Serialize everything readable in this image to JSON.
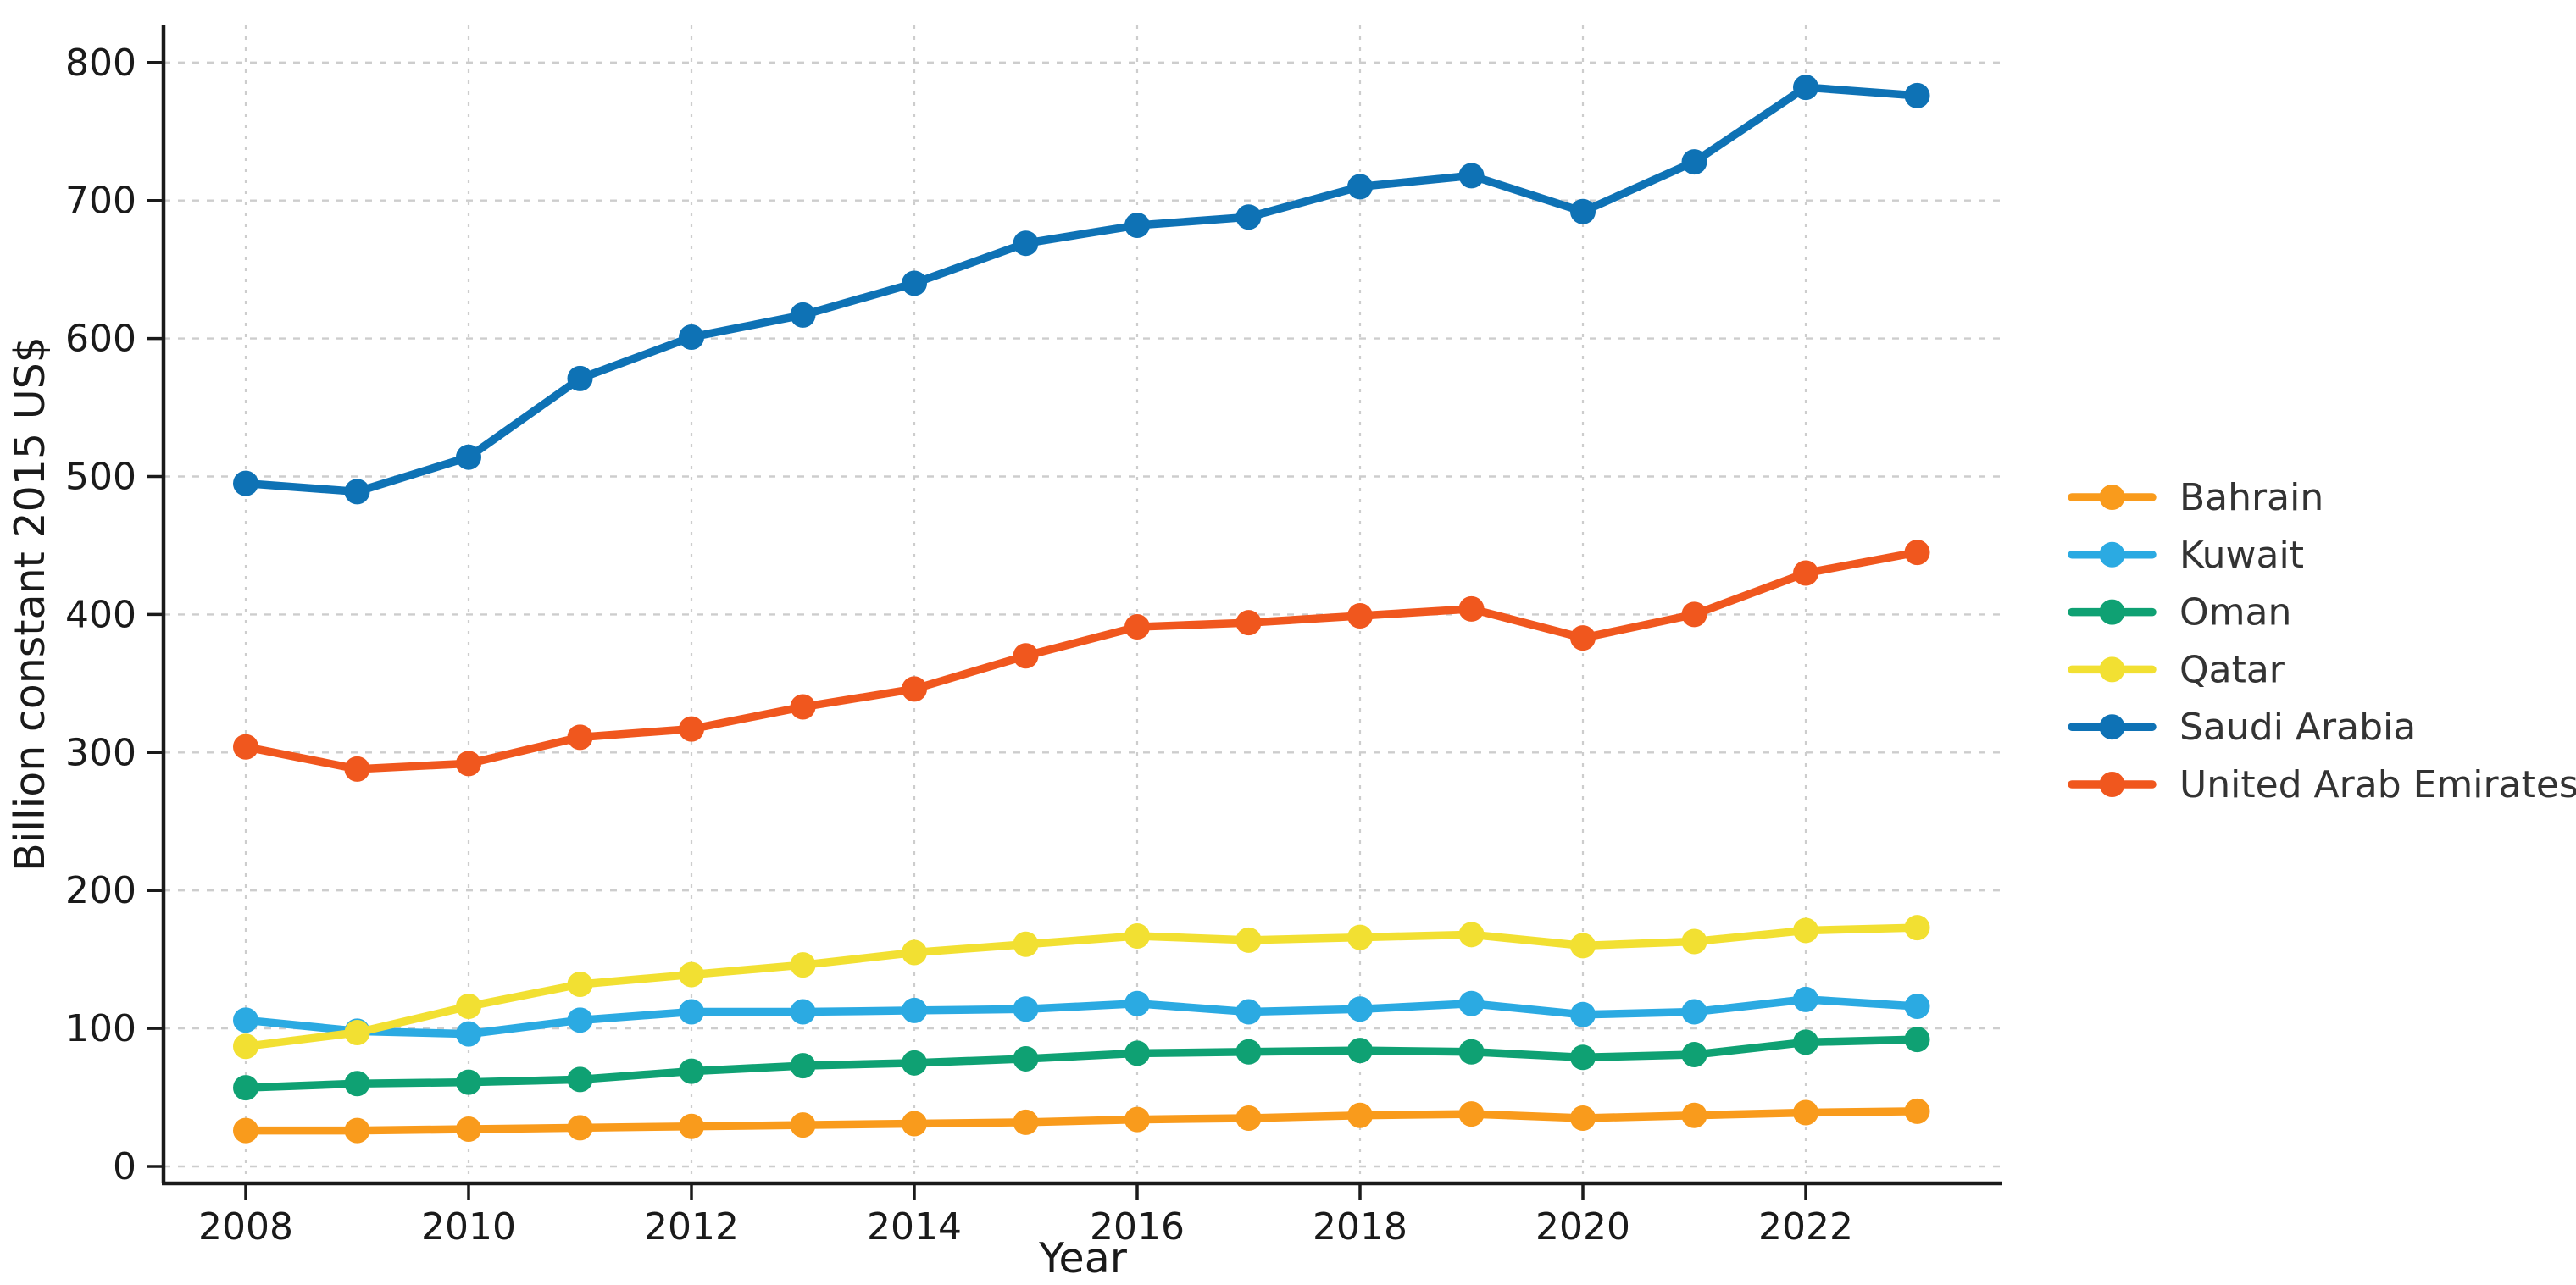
{
  "figure": {
    "xlabel": "Year",
    "ylabel": "Billion constant 2015 US$"
  },
  "chart_data": {
    "type": "line",
    "x": [
      2008,
      2009,
      2010,
      2011,
      2012,
      2013,
      2014,
      2015,
      2016,
      2017,
      2018,
      2019,
      2020,
      2021,
      2022,
      2023
    ],
    "series": [
      {
        "name": "Bahrain",
        "color": "#F99B1C",
        "values": [
          26,
          26,
          27,
          28,
          29,
          30,
          31,
          32,
          34,
          35,
          37,
          38,
          35,
          37,
          39,
          40
        ]
      },
      {
        "name": "Kuwait",
        "color": "#2BAAE2",
        "values": [
          106,
          98,
          96,
          106,
          112,
          112,
          113,
          114,
          118,
          112,
          114,
          118,
          110,
          112,
          121,
          116
        ]
      },
      {
        "name": "Oman",
        "color": "#0FA173",
        "values": [
          57,
          60,
          61,
          63,
          69,
          73,
          75,
          78,
          82,
          83,
          84,
          83,
          79,
          81,
          90,
          92
        ]
      },
      {
        "name": "Qatar",
        "color": "#F2E032",
        "values": [
          87,
          97,
          116,
          132,
          139,
          146,
          155,
          161,
          167,
          164,
          166,
          168,
          160,
          163,
          171,
          173
        ]
      },
      {
        "name": "Saudi Arabia",
        "color": "#0E72B5",
        "values": [
          495,
          489,
          514,
          571,
          601,
          617,
          640,
          669,
          682,
          688,
          710,
          718,
          692,
          728,
          782,
          776
        ]
      },
      {
        "name": "United Arab Emirates",
        "color": "#F0571E",
        "values": [
          304,
          288,
          292,
          311,
          317,
          333,
          346,
          370,
          391,
          394,
          399,
          404,
          383,
          400,
          430,
          445
        ]
      }
    ],
    "title": "",
    "xlabel": "Year",
    "ylabel": "Billion constant 2015 US$",
    "xticks": [
      2008,
      2010,
      2012,
      2014,
      2016,
      2018,
      2020,
      2022
    ],
    "yticks": [
      0,
      100,
      200,
      300,
      400,
      500,
      600,
      700,
      800
    ],
    "xlim": [
      2007.25,
      2023.75
    ],
    "ylim": [
      -12,
      827
    ],
    "grid": true,
    "grid_color": "#cdcdcd",
    "axis_color": "#1a1a1a",
    "legend_position": "right"
  }
}
